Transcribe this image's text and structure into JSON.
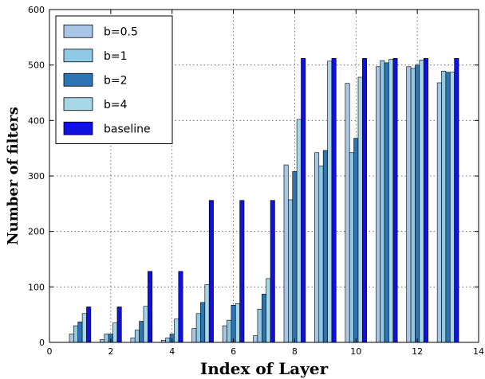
{
  "chart_data": {
    "type": "bar",
    "title": "",
    "xlabel": "Index of Layer",
    "ylabel": "Number of filters",
    "xlim": [
      0,
      14
    ],
    "ylim": [
      0,
      600
    ],
    "xticks": [
      0,
      2,
      4,
      6,
      8,
      10,
      12,
      14
    ],
    "yticks": [
      0,
      100,
      200,
      300,
      400,
      500,
      600
    ],
    "grid": true,
    "legend_position": "top-left",
    "categories": [
      1,
      2,
      3,
      4,
      5,
      6,
      7,
      8,
      9,
      10,
      11,
      12,
      13
    ],
    "series": [
      {
        "name": "b=0.5",
        "color": "#a9c6e6",
        "values": [
          15,
          5,
          8,
          4,
          25,
          30,
          12,
          320,
          342,
          467,
          497,
          497,
          468
        ]
      },
      {
        "name": "b=1",
        "color": "#8ecae6",
        "values": [
          30,
          15,
          22,
          8,
          52,
          40,
          60,
          257,
          318,
          342,
          508,
          494,
          489
        ]
      },
      {
        "name": "b=2",
        "color": "#2d74b3",
        "values": [
          37,
          15,
          38,
          15,
          72,
          67,
          87,
          308,
          346,
          368,
          504,
          500,
          487
        ]
      },
      {
        "name": "b=4",
        "color": "#a6d7e6",
        "values": [
          52,
          35,
          65,
          42,
          104,
          70,
          115,
          402,
          507,
          478,
          510,
          509,
          487
        ]
      },
      {
        "name": "baseline",
        "color": "#1111dd",
        "values": [
          64,
          64,
          128,
          128,
          256,
          256,
          256,
          512,
          512,
          512,
          512,
          512,
          512
        ]
      }
    ]
  }
}
